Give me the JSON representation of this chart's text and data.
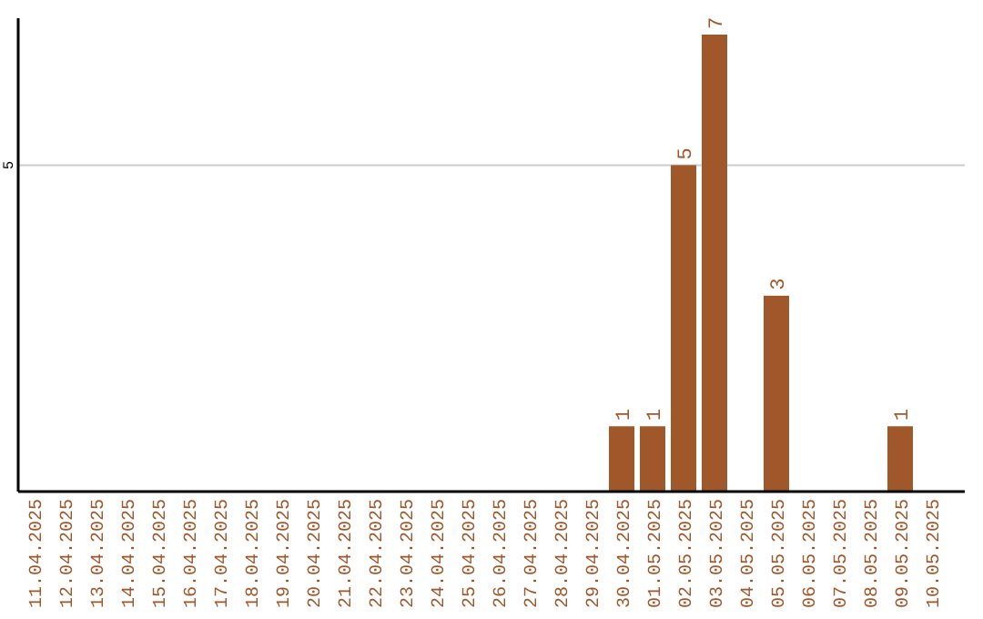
{
  "chart_data": {
    "type": "bar",
    "categories": [
      "11.04.2025",
      "12.04.2025",
      "13.04.2025",
      "14.04.2025",
      "15.04.2025",
      "16.04.2025",
      "17.04.2025",
      "18.04.2025",
      "19.04.2025",
      "20.04.2025",
      "21.04.2025",
      "22.04.2025",
      "23.04.2025",
      "24.04.2025",
      "25.04.2025",
      "26.04.2025",
      "27.04.2025",
      "28.04.2025",
      "29.04.2025",
      "30.04.2025",
      "01.05.2025",
      "02.05.2025",
      "03.05.2025",
      "04.05.2025",
      "05.05.2025",
      "06.05.2025",
      "07.05.2025",
      "08.05.2025",
      "09.05.2025",
      "10.05.2025"
    ],
    "values": [
      null,
      null,
      null,
      null,
      null,
      null,
      null,
      null,
      null,
      null,
      null,
      null,
      null,
      null,
      null,
      null,
      null,
      null,
      null,
      1,
      1,
      5,
      7,
      null,
      3,
      null,
      null,
      null,
      1,
      null
    ],
    "data_labels": true,
    "color": "#a0572a",
    "ref_lines": [
      {
        "axis": "y",
        "value": 5,
        "label": "5",
        "color": "#cccccc"
      }
    ]
  }
}
